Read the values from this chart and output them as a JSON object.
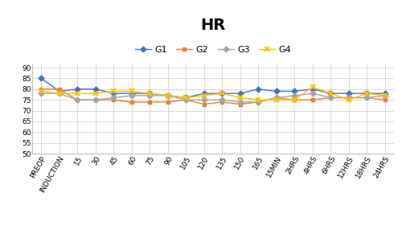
{
  "title": "HR",
  "x_labels": [
    "PREOP",
    "INDUCTION",
    "15",
    "30",
    "45",
    "60",
    "75",
    "90",
    "105",
    "120",
    "135",
    "150",
    "165",
    "15MIN",
    "2HRS",
    "4HRS",
    "6HRS",
    "12HRS",
    "18HRS",
    "24HRS"
  ],
  "G1": [
    85,
    79,
    80,
    80,
    78,
    78,
    78,
    77,
    76,
    78,
    78,
    78,
    80,
    79,
    79,
    80,
    78,
    78,
    78,
    78
  ],
  "G2": [
    80,
    80,
    75,
    75,
    75,
    74,
    74,
    74,
    75,
    73,
    74,
    73,
    74,
    76,
    75,
    75,
    76,
    76,
    76,
    75
  ],
  "G3": [
    78,
    78,
    75,
    75,
    76,
    77,
    77,
    77,
    75,
    75,
    75,
    74,
    74,
    76,
    77,
    78,
    76,
    76,
    76,
    77
  ],
  "G4": [
    79,
    78,
    78,
    78,
    79,
    79,
    78,
    77,
    76,
    77,
    78,
    76,
    75,
    75,
    75,
    81,
    78,
    75,
    78,
    77
  ],
  "G1_color": "#4472c4",
  "G2_color": "#ed7d31",
  "G3_color": "#a5a5a5",
  "G4_color": "#ffc000",
  "ylim": [
    50,
    92
  ],
  "yticks": [
    50,
    55,
    60,
    65,
    70,
    75,
    80,
    85,
    90
  ],
  "legend_labels": [
    "G1",
    "G2",
    "G3",
    "G4"
  ],
  "title_fontsize": 14,
  "axis_fontsize": 6.5,
  "legend_fontsize": 8,
  "background_color": "#ffffff",
  "grid_color": "#d9d9d9"
}
